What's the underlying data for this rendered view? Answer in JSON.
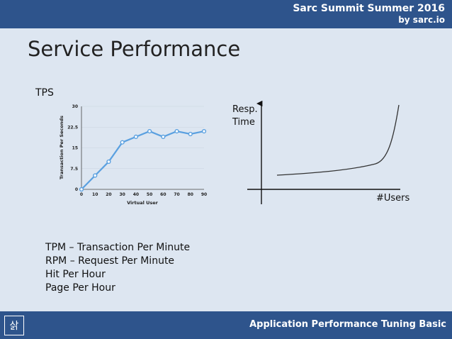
{
  "header": {
    "event_title": "Sarc Summit Summer 2016",
    "event_sub": "by sarc.io"
  },
  "slide": {
    "title": "Service Performance",
    "tps_label": "TPS"
  },
  "chart_data": [
    {
      "type": "line",
      "x": [
        0,
        10,
        20,
        30,
        40,
        50,
        60,
        70,
        80,
        90
      ],
      "series": [
        {
          "values": [
            0,
            5,
            10,
            17,
            19,
            21,
            19,
            21,
            20,
            21
          ]
        }
      ],
      "xlabel": "Virtual User",
      "ylabel": "Transaction Per Seconds",
      "x_ticks": [
        "0",
        "10",
        "20",
        "30",
        "40",
        "50",
        "60",
        "70",
        "80",
        "90"
      ],
      "y_ticks": [
        "0",
        "7.5",
        "15",
        "22.5",
        "30"
      ],
      "xlim": [
        0,
        90
      ],
      "ylim": [
        0,
        30
      ],
      "grid": true,
      "color": "#5aa0e0"
    },
    {
      "type": "line",
      "xlabel": "#Users",
      "ylabel_line1": "Resp.",
      "ylabel_line2": "Time",
      "color": "#333333"
    }
  ],
  "terms": [
    "TPM – Transaction Per Minute",
    "RPM – Request Per Minute",
    "Hit Per Hour",
    "Page Per Hour"
  ],
  "footer": {
    "logo_text": "삵",
    "text": "Application Performance Tuning Basic"
  }
}
